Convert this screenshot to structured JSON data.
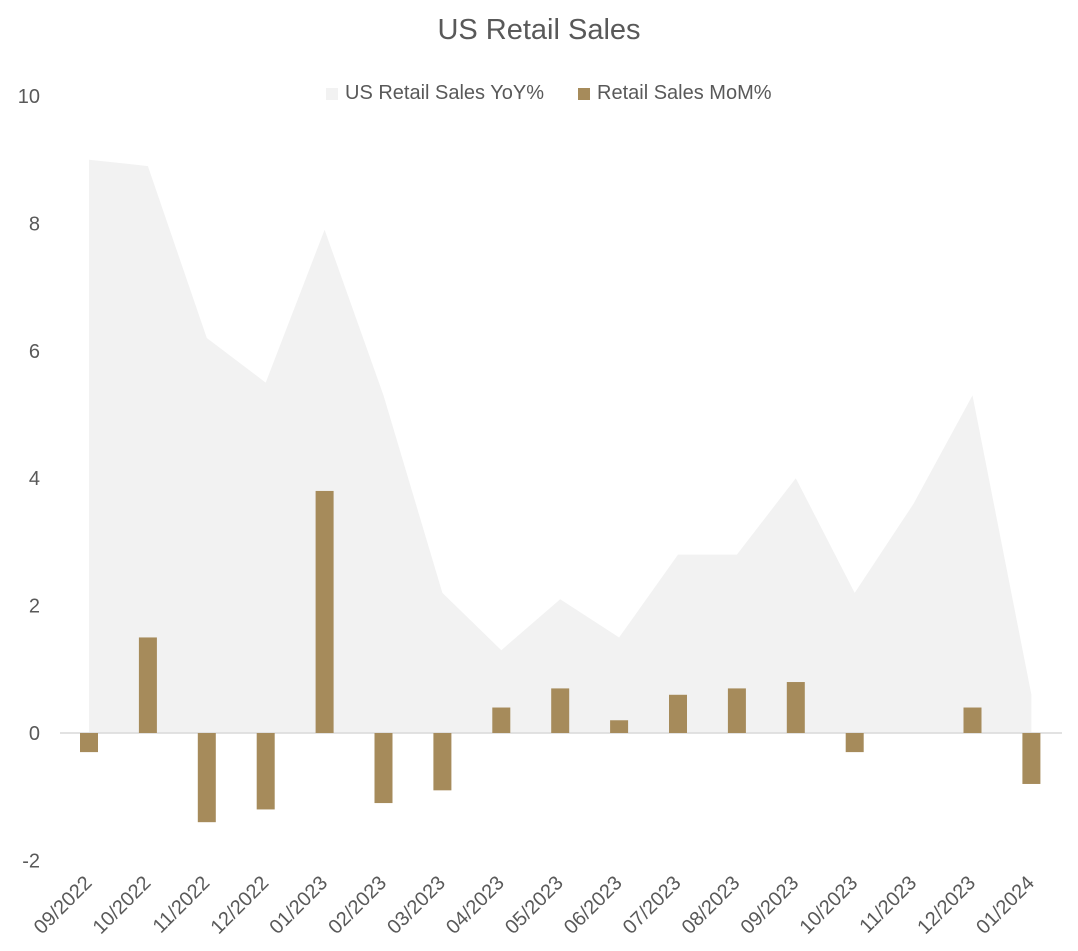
{
  "chart_data": {
    "type": "bar",
    "title": "US Retail Sales",
    "categories": [
      "09/2022",
      "10/2022",
      "11/2022",
      "12/2022",
      "01/2023",
      "02/2023",
      "03/2023",
      "04/2023",
      "05/2023",
      "06/2023",
      "07/2023",
      "08/2023",
      "09/2023",
      "10/2023",
      "11/2023",
      "12/2023",
      "01/2024"
    ],
    "series": [
      {
        "name": "US Retail Sales YoY%",
        "type": "area",
        "color": "#f2f2f2",
        "values": [
          9.0,
          8.9,
          6.2,
          5.5,
          7.9,
          5.3,
          2.2,
          1.3,
          2.1,
          1.5,
          2.8,
          2.8,
          4.0,
          2.2,
          3.6,
          5.3,
          0.6
        ]
      },
      {
        "name": "Retail Sales MoM%",
        "type": "bar",
        "color": "#a68b5b",
        "values": [
          -0.3,
          1.5,
          -1.4,
          -1.2,
          3.8,
          -1.1,
          -0.9,
          0.4,
          0.7,
          0.2,
          0.6,
          0.7,
          0.8,
          -0.3,
          0.0,
          0.4,
          -0.8
        ]
      }
    ],
    "ylim": [
      -2,
      10
    ],
    "yticks": [
      -2,
      0,
      2,
      4,
      6,
      8,
      10
    ],
    "xlabel": "",
    "ylabel": "",
    "grid": false,
    "legend_position": "top",
    "zero_line_color": "#d9d9d9"
  }
}
